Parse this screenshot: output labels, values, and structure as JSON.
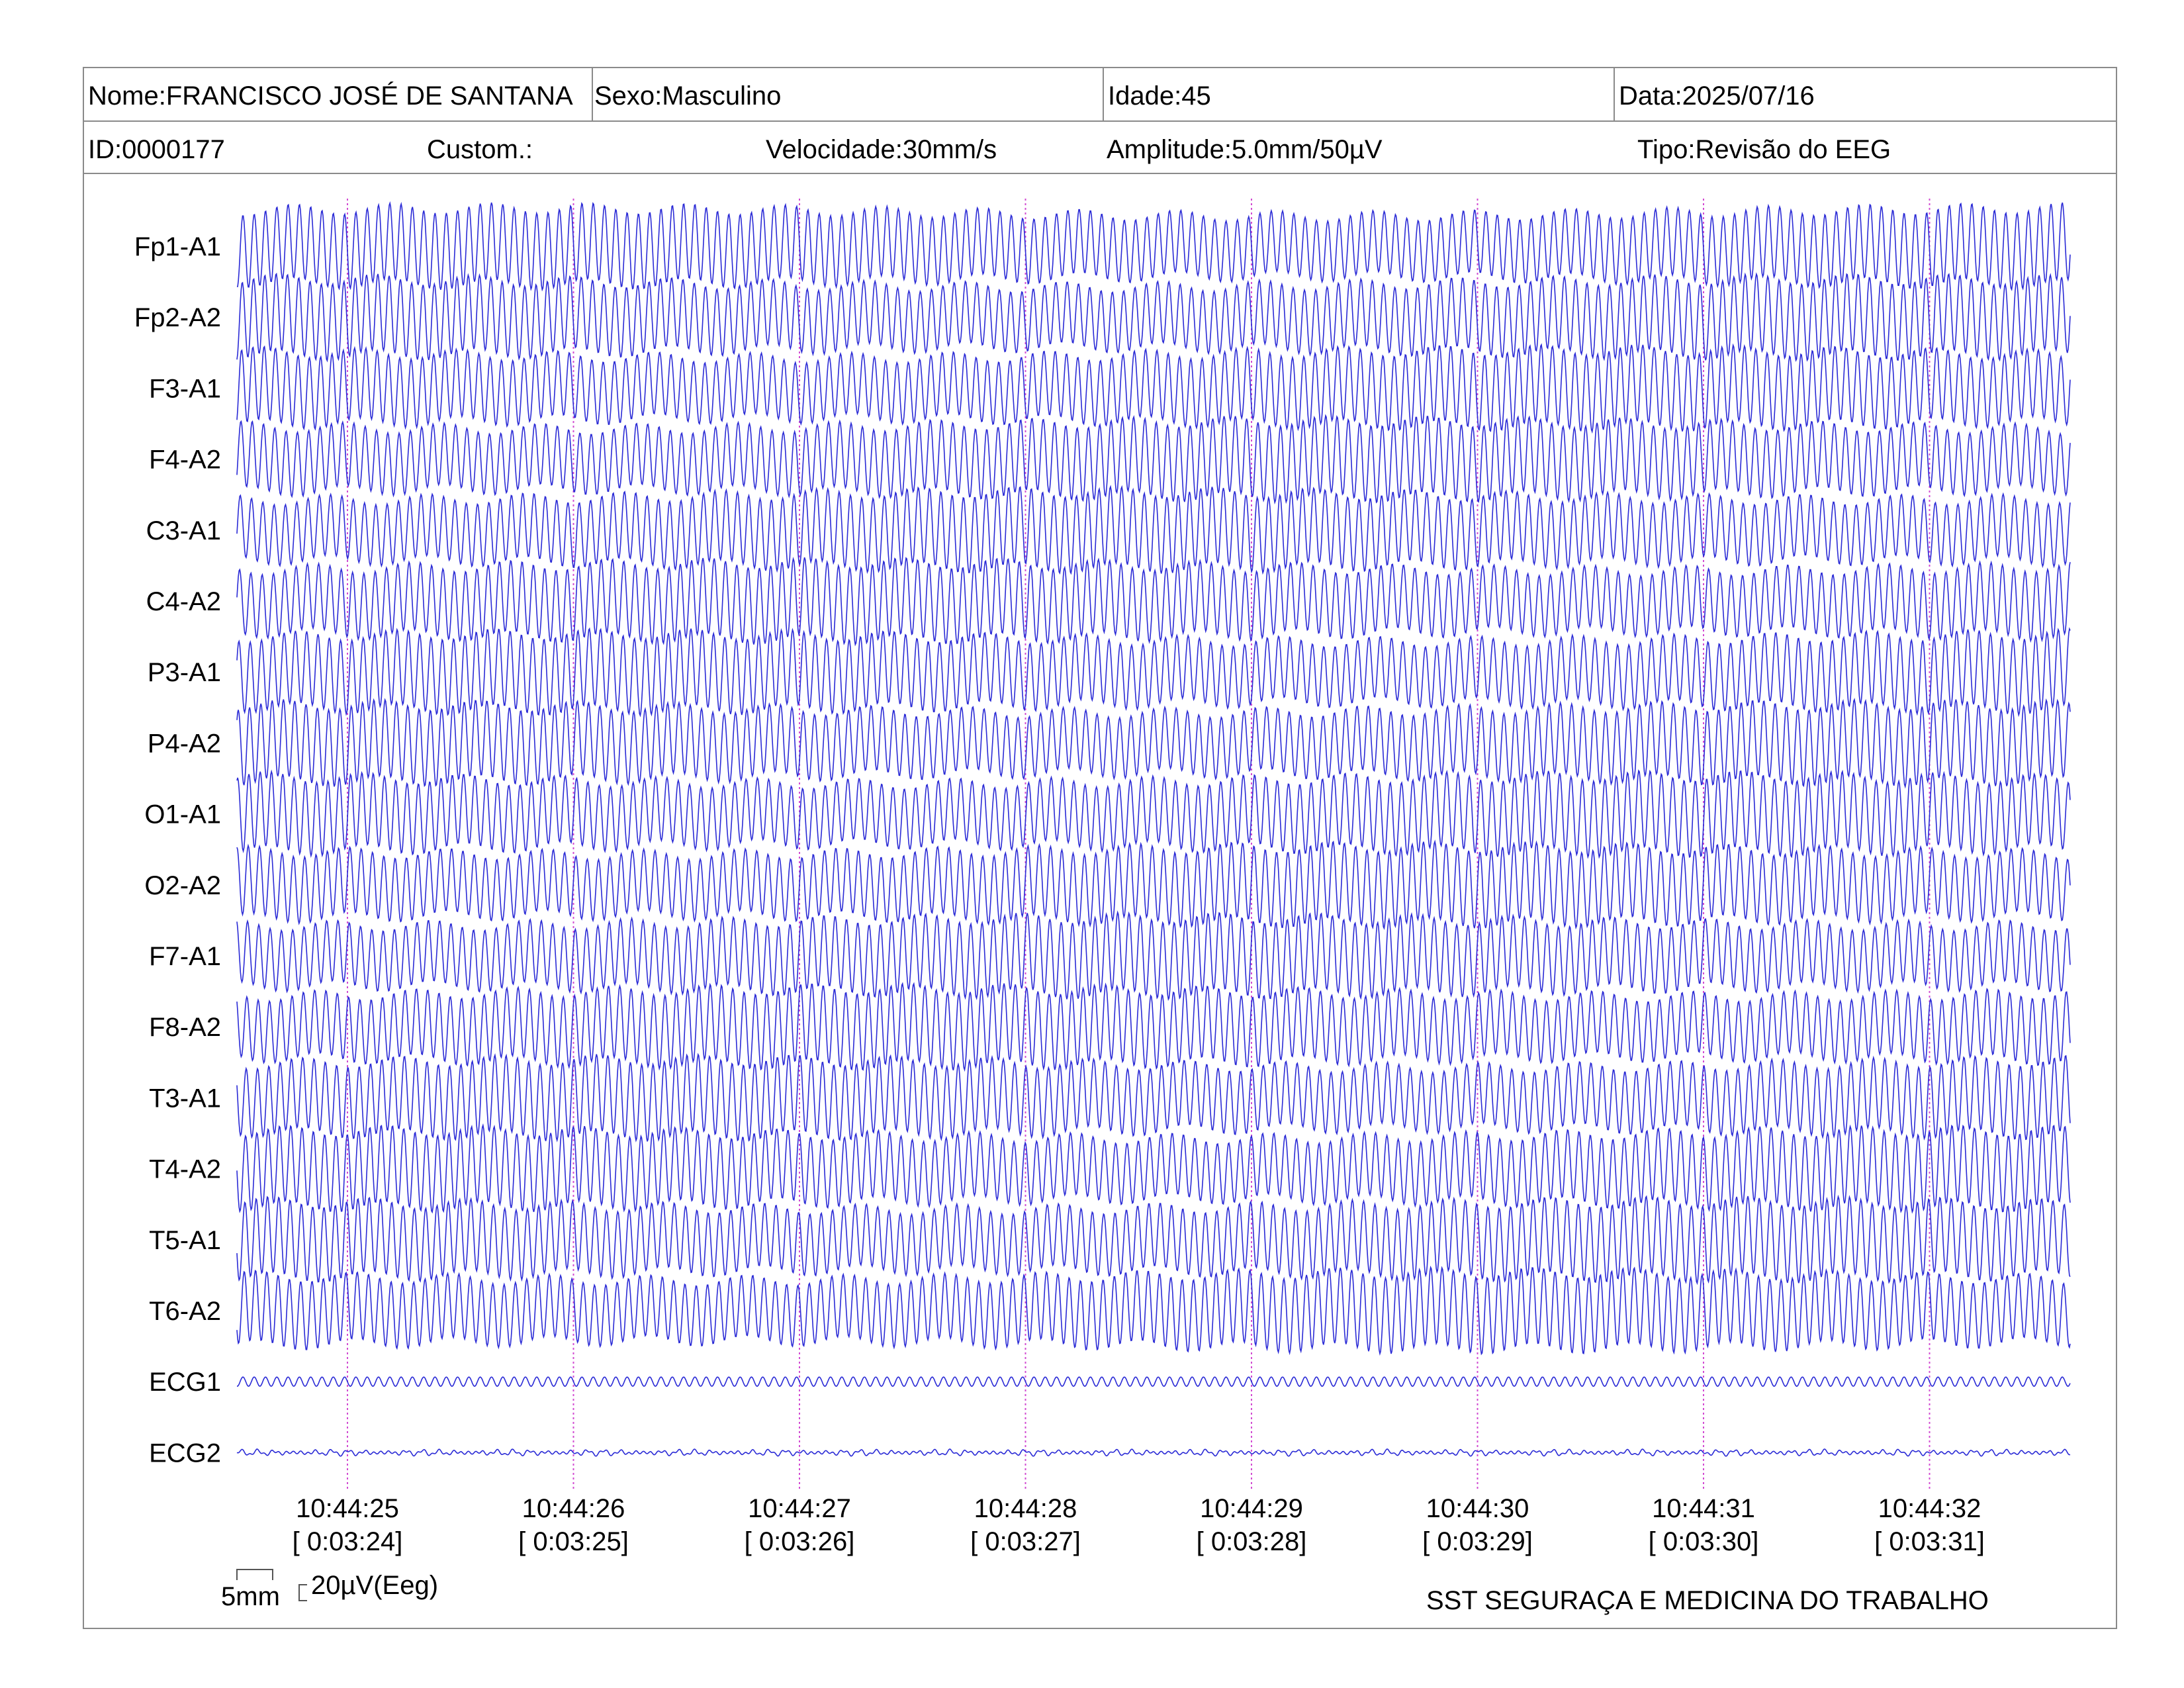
{
  "header": {
    "name": "Nome:FRANCISCO JOSÉ DE SANTANA",
    "sexo": "Sexo:Masculino",
    "idade": "Idade:45",
    "data": "Data:2025/07/16",
    "id": "ID:0000177",
    "custom": "Custom.:",
    "velocidade": "Velocidade:30mm/s",
    "amplitude": "Amplitude:5.0mm/50µV",
    "tipo": "Tipo:Revisão do EEG"
  },
  "colors": {
    "trace": "#2b2bd6",
    "marker": "#d24bd2",
    "frame": "#8a8a8a"
  },
  "chart_data": {
    "type": "line",
    "channels": [
      "Fp1-A1",
      "Fp2-A2",
      "F3-A1",
      "F4-A2",
      "C3-A1",
      "C4-A2",
      "P3-A1",
      "P4-A2",
      "O1-A1",
      "O2-A2",
      "F7-A1",
      "F8-A2",
      "T3-A1",
      "T4-A2",
      "T5-A1",
      "T6-A2",
      "ECG1",
      "ECG2"
    ],
    "time_ticks": [
      {
        "time": "10:44:25",
        "elapsed": "[ 0:03:24]"
      },
      {
        "time": "10:44:26",
        "elapsed": "[ 0:03:25]"
      },
      {
        "time": "10:44:27",
        "elapsed": "[ 0:03:26]"
      },
      {
        "time": "10:44:28",
        "elapsed": "[ 0:03:27]"
      },
      {
        "time": "10:44:29",
        "elapsed": "[ 0:03:28]"
      },
      {
        "time": "10:44:30",
        "elapsed": "[ 0:03:29]"
      },
      {
        "time": "10:44:31",
        "elapsed": "[ 0:03:30]"
      },
      {
        "time": "10:44:32",
        "elapsed": "[ 0:03:31]"
      }
    ],
    "time_range_s": [
      0.5,
      8.6
    ],
    "eeg_waveform": {
      "shape": "sinusoidal",
      "cycles_per_second": 20
    },
    "ecg1_waveform": {
      "shape": "sinusoidal",
      "cycles_per_second": 20
    },
    "ecg2_waveform": {
      "shape": "irregular low amplitude"
    },
    "scale_bar": {
      "time_label": "5mm",
      "amplitude_label": "20µV(Eeg)"
    }
  },
  "footer": {
    "company": "SST SEGURAÇA E MEDICINA DO TRABALHO"
  }
}
